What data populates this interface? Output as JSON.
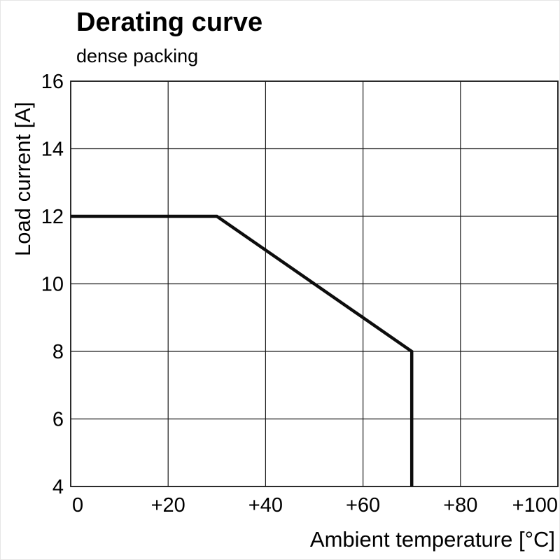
{
  "chart_data": {
    "type": "line",
    "title": "Derating curve",
    "subtitle": "dense packing",
    "xlabel": "Ambient temperature [°C]",
    "ylabel": "Load current [A]",
    "xlim": [
      0,
      100
    ],
    "ylim": [
      4,
      16
    ],
    "x_ticks": [
      0,
      20,
      40,
      60,
      80,
      100
    ],
    "x_tick_labels": [
      "0",
      "+20",
      "+40",
      "+60",
      "+80",
      "+100"
    ],
    "y_ticks": [
      4,
      6,
      8,
      10,
      12,
      14,
      16
    ],
    "y_tick_labels": [
      "4",
      "6",
      "8",
      "10",
      "12",
      "14",
      "16"
    ],
    "grid": true,
    "legend": "none",
    "line_color": "#0d0d0d",
    "grid_color": "#1a1a1a",
    "background_color": "#ffffff",
    "series": [
      {
        "name": "derating-curve-dense-packing",
        "points": [
          [
            0,
            12
          ],
          [
            30,
            12
          ],
          [
            70,
            8
          ],
          [
            70,
            4
          ]
        ]
      }
    ]
  }
}
